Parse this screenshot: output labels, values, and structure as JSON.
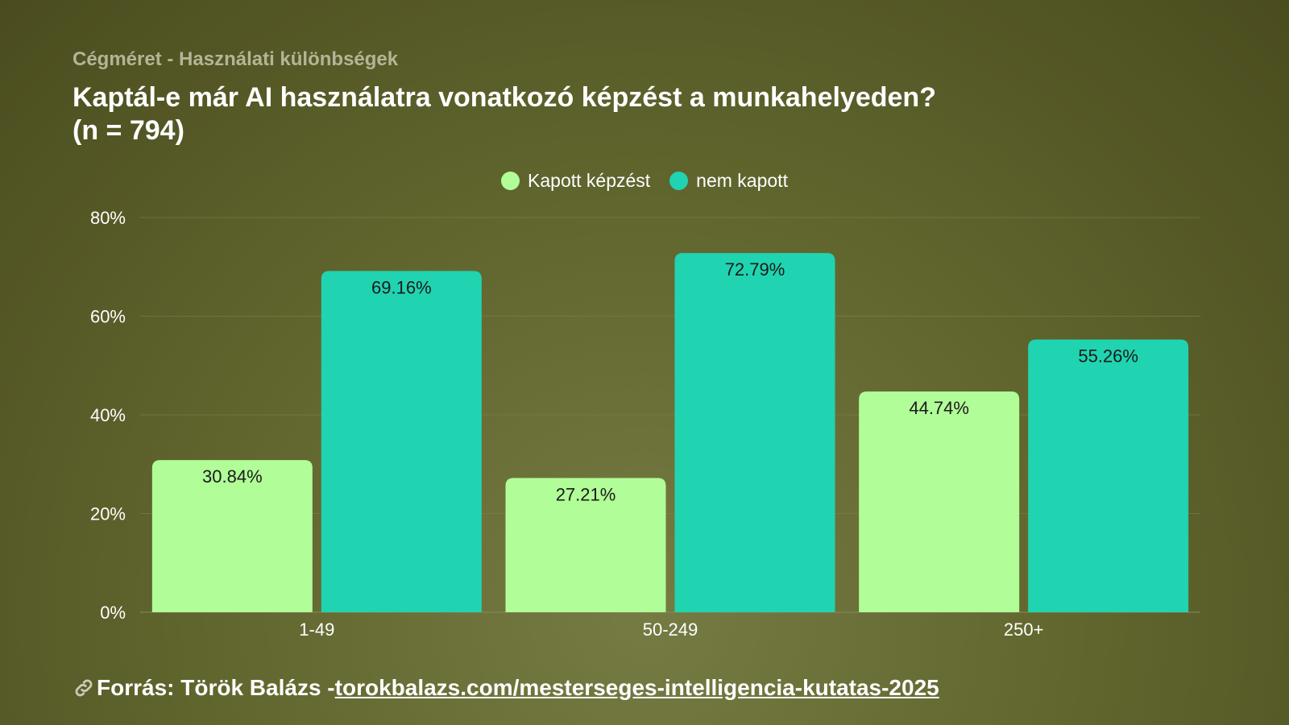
{
  "header": {
    "subtitle": "Cégméret - Használati különbségek",
    "title_line1": "Kaptál-e már AI használatra vonatkozó képzést a munkahelyeden?",
    "title_line2": "(n = 794)"
  },
  "footer": {
    "prefix": "Forrás: Török Balázs - ",
    "link_text": "torokbalazs.com/mesterseges-intelligencia-kutatas-2025",
    "icon": "link-icon"
  },
  "colors": {
    "kapott": "#b1fd98",
    "nem_kapott": "#20d4b1"
  },
  "chart_data": {
    "type": "bar",
    "categories": [
      "1-49",
      "50-249",
      "250+"
    ],
    "series": [
      {
        "name": "Kapott képzést",
        "values": [
          30.84,
          27.21,
          44.74
        ],
        "labels": [
          "30.84%",
          "27.21%",
          "44.74%"
        ]
      },
      {
        "name": "nem kapott",
        "values": [
          69.16,
          72.79,
          55.26
        ],
        "labels": [
          "69.16%",
          "72.79%",
          "55.26%"
        ]
      }
    ],
    "y_ticks": [
      "0%",
      "20%",
      "40%",
      "60%",
      "80%"
    ],
    "ylim": [
      0,
      80
    ],
    "grid": true,
    "legend_position": "top-center"
  }
}
